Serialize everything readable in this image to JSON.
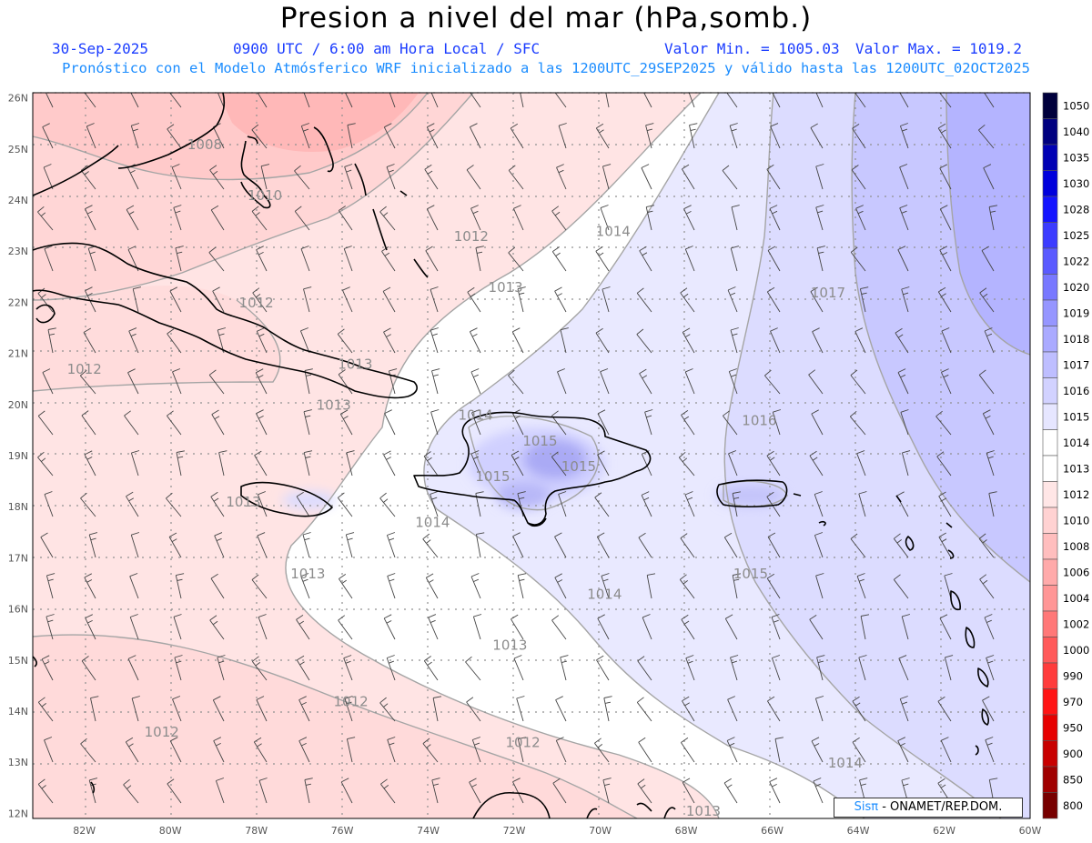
{
  "header": {
    "title": "Presion a nivel del mar (hPa,somb.)",
    "date": "30-Sep-2025",
    "time_label": "0900 UTC / 6:00 am Hora Local / SFC",
    "min_label": "Valor Min. = 1005.03",
    "max_label": "Valor Max. = 1019.2",
    "model_label": "Pronóstico con el Modelo Atmósferico WRF inicializado a las 1200UTC_29SEP2025 y válido hasta las  1200UTC_02OCT2025"
  },
  "map": {
    "extent": {
      "lon_min": -83.2,
      "lon_max": -60.0,
      "lat_min": 11.9,
      "lat_max": 26.1
    },
    "lat_labels": [
      "26N",
      "25N",
      "24N",
      "23N",
      "22N",
      "21N",
      "20N",
      "19N",
      "18N",
      "17N",
      "16N",
      "15N",
      "14N",
      "13N",
      "12N"
    ],
    "lon_labels": [
      "82W",
      "80W",
      "78W",
      "76W",
      "74W",
      "72W",
      "70W",
      "68W",
      "66W",
      "64W",
      "62W",
      "60W"
    ],
    "contour_labels": [
      {
        "text": "1008",
        "lon": -79.2,
        "lat": 25.0
      },
      {
        "text": "1010",
        "lon": -77.8,
        "lat": 24.0
      },
      {
        "text": "1012",
        "lon": -73.0,
        "lat": 23.2
      },
      {
        "text": "1014",
        "lon": -69.7,
        "lat": 23.3
      },
      {
        "text": "1013",
        "lon": -72.2,
        "lat": 22.2
      },
      {
        "text": "1017",
        "lon": -64.7,
        "lat": 22.1
      },
      {
        "text": "1012",
        "lon": -78.0,
        "lat": 21.9
      },
      {
        "text": "1012",
        "lon": -82.0,
        "lat": 20.6
      },
      {
        "text": "1013",
        "lon": -75.7,
        "lat": 20.7
      },
      {
        "text": "1013",
        "lon": -76.2,
        "lat": 19.9
      },
      {
        "text": "1014",
        "lon": -72.9,
        "lat": 19.7
      },
      {
        "text": "1015",
        "lon": -71.4,
        "lat": 19.2
      },
      {
        "text": "1016",
        "lon": -66.3,
        "lat": 19.6
      },
      {
        "text": "1015",
        "lon": -70.5,
        "lat": 18.7
      },
      {
        "text": "1015",
        "lon": -72.5,
        "lat": 18.5
      },
      {
        "text": "1013",
        "lon": -78.3,
        "lat": 18.0
      },
      {
        "text": "1014",
        "lon": -73.9,
        "lat": 17.6
      },
      {
        "text": "1013",
        "lon": -76.8,
        "lat": 16.6
      },
      {
        "text": "1015",
        "lon": -66.5,
        "lat": 16.6
      },
      {
        "text": "1014",
        "lon": -69.9,
        "lat": 16.2
      },
      {
        "text": "1013",
        "lon": -72.1,
        "lat": 15.2
      },
      {
        "text": "1012",
        "lon": -75.8,
        "lat": 14.1
      },
      {
        "text": "1012",
        "lon": -80.2,
        "lat": 13.5
      },
      {
        "text": "1012",
        "lon": -71.8,
        "lat": 13.3
      },
      {
        "text": "1014",
        "lon": -64.3,
        "lat": 12.9
      },
      {
        "text": "1013",
        "lon": -67.6,
        "lat": 11.95
      }
    ]
  },
  "legend": {
    "levels": [
      "1050",
      "1040",
      "1035",
      "1030",
      "1028",
      "1025",
      "1022",
      "1020",
      "1019",
      "1018",
      "1017",
      "1016",
      "1015",
      "1014",
      "1013",
      "1012",
      "1010",
      "1008",
      "1006",
      "1004",
      "1002",
      "1000",
      "990",
      "970",
      "950",
      "900",
      "850",
      "800"
    ],
    "colors": [
      "#00003c",
      "#000080",
      "#0000b4",
      "#0000dc",
      "#1414ff",
      "#3c3cff",
      "#5a5aff",
      "#7878ff",
      "#9696ff",
      "#aaaaff",
      "#bebeff",
      "#d2d2ff",
      "#e6e6ff",
      "#ffffff",
      "#ffffff",
      "#ffe6e6",
      "#ffd2d2",
      "#ffbebe",
      "#ffaaaa",
      "#ff9696",
      "#ff7878",
      "#ff5a5a",
      "#ff3c3c",
      "#ff1414",
      "#e60000",
      "#c80000",
      "#a00000",
      "#780000"
    ]
  },
  "credit": {
    "brand": "Sisπ",
    "text": " - ONAMET/REP.DOM."
  }
}
